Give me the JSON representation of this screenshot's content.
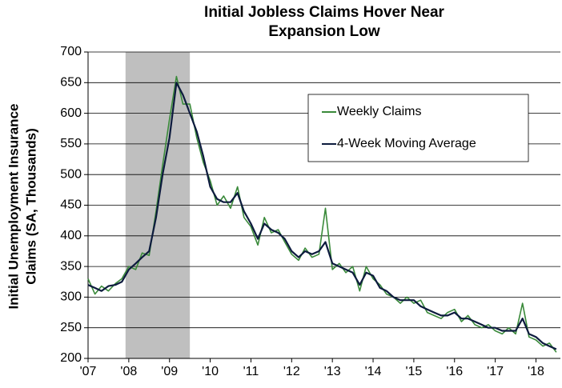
{
  "chart_data": {
    "type": "line",
    "title": [
      "Initial Jobless Claims Hover Near",
      "Expansion Low"
    ],
    "ylabel": [
      "Initial Unemployment Insurance",
      "Claims (SA, Thousands)"
    ],
    "x": [
      2007,
      2007.17,
      2007.33,
      2007.5,
      2007.67,
      2007.83,
      2008,
      2008.17,
      2008.33,
      2008.5,
      2008.67,
      2008.83,
      2009,
      2009.17,
      2009.33,
      2009.5,
      2009.67,
      2009.83,
      2010,
      2010.17,
      2010.33,
      2010.5,
      2010.67,
      2010.83,
      2011,
      2011.17,
      2011.33,
      2011.5,
      2011.67,
      2011.83,
      2012,
      2012.17,
      2012.33,
      2012.5,
      2012.67,
      2012.83,
      2013,
      2013.17,
      2013.33,
      2013.5,
      2013.67,
      2013.83,
      2014,
      2014.17,
      2014.33,
      2014.5,
      2014.67,
      2014.83,
      2015,
      2015.17,
      2015.33,
      2015.5,
      2015.67,
      2015.83,
      2016,
      2016.17,
      2016.33,
      2016.5,
      2016.67,
      2016.83,
      2017,
      2017.17,
      2017.33,
      2017.5,
      2017.67,
      2017.83,
      2018,
      2018.17,
      2018.33,
      2018.5
    ],
    "series": [
      {
        "name": "Weekly Claims",
        "color": "#3a8a3a",
        "values": [
          330,
          305,
          318,
          310,
          322,
          330,
          350,
          345,
          372,
          368,
          440,
          515,
          590,
          660,
          615,
          615,
          560,
          520,
          490,
          450,
          465,
          445,
          480,
          430,
          415,
          385,
          430,
          405,
          410,
          390,
          370,
          360,
          380,
          365,
          370,
          445,
          345,
          355,
          340,
          350,
          310,
          350,
          330,
          320,
          305,
          300,
          290,
          300,
          290,
          295,
          275,
          270,
          265,
          275,
          280,
          260,
          270,
          255,
          250,
          255,
          245,
          240,
          250,
          240,
          290,
          235,
          230,
          220,
          225,
          210
        ]
      },
      {
        "name": "4-Week Moving Average",
        "color": "#0d1b3e",
        "values": [
          320,
          315,
          310,
          318,
          320,
          325,
          345,
          355,
          365,
          375,
          430,
          500,
          560,
          650,
          630,
          600,
          570,
          530,
          480,
          460,
          455,
          455,
          470,
          440,
          420,
          395,
          420,
          410,
          405,
          395,
          375,
          365,
          375,
          370,
          375,
          390,
          355,
          350,
          345,
          340,
          320,
          340,
          335,
          315,
          310,
          300,
          295,
          295,
          295,
          285,
          280,
          275,
          270,
          270,
          275,
          265,
          265,
          260,
          255,
          250,
          250,
          245,
          245,
          245,
          265,
          240,
          235,
          225,
          220,
          215
        ]
      }
    ],
    "shaded_band": {
      "x": [
        2007.92,
        2009.5
      ],
      "color": "#bfbfbf"
    },
    "xlim": [
      2007,
      2018.6
    ],
    "xticks": [
      {
        "value": 2007,
        "label": "'07"
      },
      {
        "value": 2008,
        "label": "'08"
      },
      {
        "value": 2009,
        "label": "'09"
      },
      {
        "value": 2010,
        "label": "'10"
      },
      {
        "value": 2011,
        "label": "'11"
      },
      {
        "value": 2012,
        "label": "'12"
      },
      {
        "value": 2013,
        "label": "'13"
      },
      {
        "value": 2014,
        "label": "'14"
      },
      {
        "value": 2015,
        "label": "'15"
      },
      {
        "value": 2016,
        "label": "'16"
      },
      {
        "value": 2017,
        "label": "'17"
      },
      {
        "value": 2018,
        "label": "'18"
      }
    ],
    "ylim": [
      200,
      700
    ],
    "yticks": [
      200,
      250,
      300,
      350,
      400,
      450,
      500,
      550,
      600,
      650,
      700
    ],
    "grid": true
  }
}
